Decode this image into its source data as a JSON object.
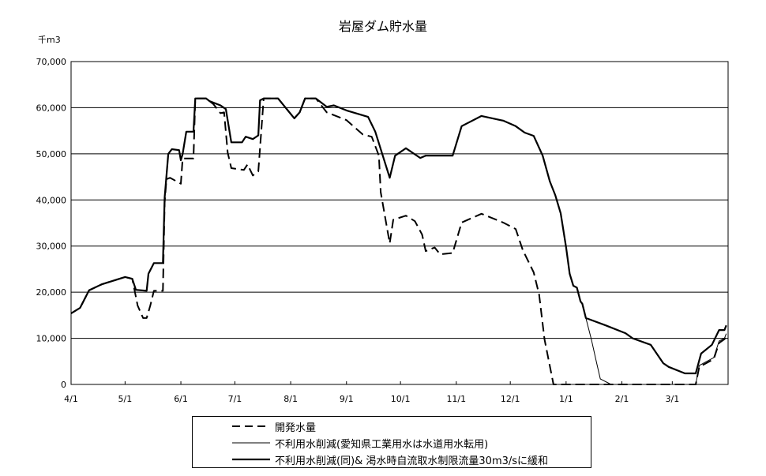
{
  "chart_data": {
    "type": "line",
    "title": "岩屋ダム貯水量",
    "ylabel": "千m3",
    "ylim": [
      0,
      70000
    ],
    "yticks": [
      "0",
      "10,000",
      "20,000",
      "30,000",
      "40,000",
      "50,000",
      "60,000",
      "70,000"
    ],
    "xticks": [
      "4/1",
      "5/1",
      "6/1",
      "7/1",
      "8/1",
      "9/1",
      "10/1",
      "11/1",
      "12/1",
      "1/1",
      "2/1",
      "3/1"
    ],
    "grid": "horizontal",
    "legend_placement": "bottom",
    "series": [
      {
        "name": "開発水量",
        "style": "dashed",
        "color": "#000000",
        "points": [
          [
            "4/1",
            15400
          ],
          [
            "4/6",
            16600
          ],
          [
            "4/11",
            20400
          ],
          [
            "4/18",
            21700
          ],
          [
            "5/1",
            23300
          ],
          [
            "5/5",
            22900
          ],
          [
            "5/8",
            17100
          ],
          [
            "5/11",
            14400
          ],
          [
            "5/13",
            14400
          ],
          [
            "5/15",
            17100
          ],
          [
            "5/17",
            20300
          ],
          [
            "5/22",
            20300
          ],
          [
            "5/23",
            39400
          ],
          [
            "5/24",
            44500
          ],
          [
            "5/26",
            44800
          ],
          [
            "6/1",
            43500
          ],
          [
            "6/2",
            49000
          ],
          [
            "6/8",
            49000
          ],
          [
            "6/9",
            62000
          ],
          [
            "6/15",
            62000
          ],
          [
            "6/19",
            60800
          ],
          [
            "6/23",
            58800
          ],
          [
            "6/25",
            59000
          ],
          [
            "6/27",
            50300
          ],
          [
            "6/29",
            46900
          ],
          [
            "7/6",
            46500
          ],
          [
            "7/8",
            47700
          ],
          [
            "7/11",
            45300
          ],
          [
            "7/14",
            46200
          ],
          [
            "7/15",
            51300
          ],
          [
            "7/17",
            62000
          ],
          [
            "7/25",
            62000
          ],
          [
            "8/3",
            57700
          ],
          [
            "8/6",
            59000
          ],
          [
            "8/9",
            62000
          ],
          [
            "8/15",
            62000
          ],
          [
            "8/21",
            59000
          ],
          [
            "9/1",
            57300
          ],
          [
            "9/10",
            54200
          ],
          [
            "9/15",
            53700
          ],
          [
            "9/19",
            49600
          ],
          [
            "9/20",
            41700
          ],
          [
            "9/25",
            30600
          ],
          [
            "9/27",
            35700
          ],
          [
            "10/4",
            36600
          ],
          [
            "10/9",
            35400
          ],
          [
            "10/13",
            32500
          ],
          [
            "10/15",
            28900
          ],
          [
            "10/20",
            29700
          ],
          [
            "10/23",
            28200
          ],
          [
            "10/30",
            28500
          ],
          [
            "11/4",
            35100
          ],
          [
            "11/15",
            37000
          ],
          [
            "11/27",
            35100
          ],
          [
            "12/4",
            33700
          ],
          [
            "12/8",
            29100
          ],
          [
            "12/14",
            24300
          ],
          [
            "12/17",
            19500
          ],
          [
            "12/20",
            9800
          ],
          [
            "12/25",
            0
          ],
          [
            "3/14",
            0
          ],
          [
            "3/16",
            3800
          ],
          [
            "3/24",
            5500
          ],
          [
            "3/27",
            9000
          ],
          [
            "3/30",
            9800
          ],
          [
            "3/31",
            10500
          ]
        ]
      },
      {
        "name": "不利用水削減(愛知県工業用水は水道用水転用)",
        "style": "thin",
        "color": "#000000",
        "points": [
          [
            "4/1",
            15400
          ],
          [
            "4/6",
            16600
          ],
          [
            "4/11",
            20400
          ],
          [
            "4/18",
            21700
          ],
          [
            "5/1",
            23300
          ],
          [
            "5/5",
            22900
          ],
          [
            "5/7",
            20500
          ],
          [
            "5/13",
            20300
          ],
          [
            "5/14",
            24000
          ],
          [
            "5/17",
            26300
          ],
          [
            "5/22",
            26300
          ],
          [
            "5/23",
            40500
          ],
          [
            "5/25",
            50000
          ],
          [
            "5/27",
            51000
          ],
          [
            "5/31",
            50800
          ],
          [
            "6/1",
            48600
          ],
          [
            "6/2",
            50000
          ],
          [
            "6/4",
            54800
          ],
          [
            "6/8",
            54800
          ],
          [
            "6/9",
            62000
          ],
          [
            "6/15",
            62000
          ],
          [
            "6/17",
            61400
          ],
          [
            "6/23",
            60500
          ],
          [
            "6/26",
            59700
          ],
          [
            "6/29",
            52500
          ],
          [
            "7/5",
            52500
          ],
          [
            "7/7",
            53700
          ],
          [
            "7/11",
            53200
          ],
          [
            "7/14",
            54000
          ],
          [
            "7/15",
            61600
          ],
          [
            "7/17",
            62000
          ],
          [
            "7/25",
            62000
          ],
          [
            "8/3",
            57700
          ],
          [
            "8/6",
            59000
          ],
          [
            "8/9",
            62000
          ],
          [
            "8/15",
            62000
          ],
          [
            "8/21",
            60200
          ],
          [
            "8/25",
            60500
          ],
          [
            "9/1",
            59400
          ],
          [
            "9/13",
            58000
          ],
          [
            "9/17",
            54800
          ],
          [
            "9/25",
            44800
          ],
          [
            "9/28",
            49600
          ],
          [
            "10/4",
            51200
          ],
          [
            "10/12",
            49100
          ],
          [
            "10/15",
            49600
          ],
          [
            "10/30",
            49600
          ],
          [
            "11/4",
            56000
          ],
          [
            "11/15",
            58200
          ],
          [
            "11/27",
            57200
          ],
          [
            "12/4",
            56000
          ],
          [
            "12/9",
            54600
          ],
          [
            "12/14",
            53900
          ],
          [
            "12/19",
            49600
          ],
          [
            "12/23",
            44000
          ],
          [
            "12/26",
            41000
          ],
          [
            "12/29",
            37100
          ],
          [
            "1/1",
            29800
          ],
          [
            "1/3",
            24000
          ],
          [
            "1/5",
            21400
          ],
          [
            "1/7",
            21000
          ],
          [
            "1/9",
            18000
          ],
          [
            "1/10",
            17500
          ],
          [
            "1/12",
            14400
          ],
          [
            "1/15",
            9800
          ],
          [
            "1/18",
            4600
          ],
          [
            "1/20",
            1200
          ],
          [
            "1/26",
            0
          ],
          [
            "3/14",
            0
          ],
          [
            "3/16",
            4100
          ],
          [
            "3/24",
            5800
          ],
          [
            "3/27",
            9400
          ],
          [
            "3/30",
            10000
          ],
          [
            "3/31",
            11000
          ]
        ]
      },
      {
        "name": "不利用水削減(同)& 渇水時自流取水制限流量30m3/sに緩和",
        "style": "thick",
        "color": "#000000",
        "points": [
          [
            "4/1",
            15400
          ],
          [
            "4/6",
            16600
          ],
          [
            "4/11",
            20400
          ],
          [
            "4/18",
            21700
          ],
          [
            "5/1",
            23300
          ],
          [
            "5/5",
            22900
          ],
          [
            "5/7",
            20500
          ],
          [
            "5/13",
            20300
          ],
          [
            "5/14",
            24000
          ],
          [
            "5/17",
            26300
          ],
          [
            "5/22",
            26300
          ],
          [
            "5/23",
            40500
          ],
          [
            "5/25",
            50000
          ],
          [
            "5/27",
            51000
          ],
          [
            "5/31",
            50800
          ],
          [
            "6/1",
            48600
          ],
          [
            "6/2",
            50000
          ],
          [
            "6/4",
            54800
          ],
          [
            "6/8",
            54800
          ],
          [
            "6/9",
            62000
          ],
          [
            "6/15",
            62000
          ],
          [
            "6/17",
            61400
          ],
          [
            "6/23",
            60500
          ],
          [
            "6/26",
            59700
          ],
          [
            "6/29",
            52500
          ],
          [
            "7/5",
            52500
          ],
          [
            "7/7",
            53700
          ],
          [
            "7/11",
            53200
          ],
          [
            "7/14",
            54000
          ],
          [
            "7/15",
            61600
          ],
          [
            "7/17",
            62000
          ],
          [
            "7/25",
            62000
          ],
          [
            "8/3",
            57700
          ],
          [
            "8/6",
            59000
          ],
          [
            "8/9",
            62000
          ],
          [
            "8/15",
            62000
          ],
          [
            "8/21",
            60200
          ],
          [
            "8/25",
            60500
          ],
          [
            "9/1",
            59400
          ],
          [
            "9/13",
            58000
          ],
          [
            "9/17",
            54800
          ],
          [
            "9/25",
            44800
          ],
          [
            "9/28",
            49600
          ],
          [
            "10/4",
            51200
          ],
          [
            "10/12",
            49100
          ],
          [
            "10/15",
            49600
          ],
          [
            "10/30",
            49600
          ],
          [
            "11/4",
            56000
          ],
          [
            "11/15",
            58200
          ],
          [
            "11/27",
            57200
          ],
          [
            "12/4",
            56000
          ],
          [
            "12/9",
            54600
          ],
          [
            "12/14",
            53900
          ],
          [
            "12/19",
            49600
          ],
          [
            "12/23",
            44000
          ],
          [
            "12/26",
            41000
          ],
          [
            "12/29",
            37100
          ],
          [
            "1/1",
            29800
          ],
          [
            "1/3",
            24000
          ],
          [
            "1/5",
            21400
          ],
          [
            "1/7",
            21000
          ],
          [
            "1/9",
            18000
          ],
          [
            "1/10",
            17500
          ],
          [
            "1/12",
            14400
          ],
          [
            "1/23",
            12800
          ],
          [
            "2/3",
            11100
          ],
          [
            "2/7",
            10000
          ],
          [
            "2/17",
            8600
          ],
          [
            "2/24",
            4600
          ],
          [
            "2/27",
            3800
          ],
          [
            "3/8",
            2400
          ],
          [
            "3/14",
            2400
          ],
          [
            "3/17",
            6700
          ],
          [
            "3/23",
            8600
          ],
          [
            "3/27",
            11800
          ],
          [
            "3/30",
            11800
          ],
          [
            "3/31",
            12800
          ]
        ]
      }
    ]
  }
}
